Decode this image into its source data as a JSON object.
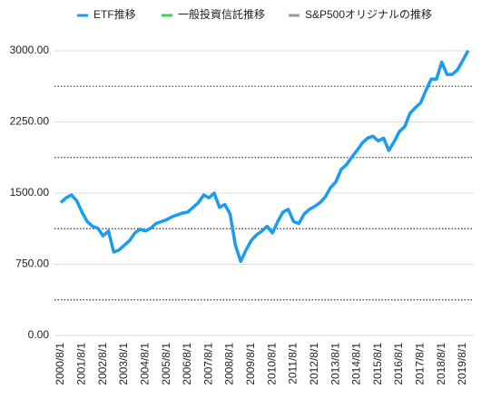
{
  "chart_data": {
    "type": "line",
    "categories": [
      "2000/8/1",
      null,
      null,
      null,
      "2001/8/1",
      null,
      null,
      null,
      "2002/8/1",
      null,
      null,
      null,
      "2003/8/1",
      null,
      null,
      null,
      "2004/8/1",
      null,
      null,
      null,
      "2005/8/1",
      null,
      null,
      null,
      "2006/8/1",
      null,
      null,
      null,
      "2007/8/1",
      null,
      null,
      null,
      "2008/8/1",
      null,
      null,
      null,
      "2009/8/1",
      null,
      null,
      null,
      "2010/8/1",
      null,
      null,
      null,
      "2011/8/1",
      null,
      null,
      null,
      "2012/8/1",
      null,
      null,
      null,
      "2013/8/1",
      null,
      null,
      null,
      "2014/8/1",
      null,
      null,
      null,
      "2015/8/1",
      null,
      null,
      null,
      "2016/8/1",
      null,
      null,
      null,
      "2017/8/1",
      null,
      null,
      null,
      "2018/8/1",
      null,
      null,
      null,
      "2019/8/1",
      null
    ],
    "series": [
      {
        "name": "ETF推移",
        "color": "#1a9cf0",
        "values": [
          1400,
          1450,
          1480,
          1420,
          1300,
          1200,
          1150,
          1130,
          1050,
          1100,
          880,
          900,
          950,
          1000,
          1080,
          1120,
          1100,
          1130,
          1180,
          1200,
          1220,
          1250,
          1270,
          1290,
          1300,
          1350,
          1400,
          1480,
          1450,
          1500,
          1350,
          1380,
          1280,
          950,
          780,
          900,
          1000,
          1060,
          1100,
          1150,
          1080,
          1200,
          1300,
          1330,
          1200,
          1180,
          1280,
          1330,
          1360,
          1400,
          1460,
          1560,
          1620,
          1750,
          1800,
          1880,
          1950,
          2030,
          2080,
          2100,
          2050,
          2080,
          1950,
          2040,
          2150,
          2200,
          2340,
          2400,
          2450,
          2580,
          2700,
          2700,
          2880,
          2750,
          2750,
          2800,
          2900,
          3000
        ]
      },
      {
        "name": "一般投資信託推移",
        "color": "#3ccf4e",
        "values": [
          null,
          null,
          null,
          null,
          null,
          null,
          null,
          null,
          null,
          null,
          null,
          null,
          null,
          null,
          null,
          null,
          null,
          null,
          null,
          null,
          null,
          null,
          null,
          null,
          null,
          null,
          null,
          null,
          null,
          null,
          null,
          null,
          null,
          null,
          null,
          null,
          null,
          null,
          null,
          null,
          null,
          null,
          null,
          null,
          null,
          null,
          null,
          null,
          null,
          null,
          null,
          null,
          null,
          null,
          null,
          null,
          null,
          null,
          null,
          null,
          null,
          null,
          null,
          null,
          null,
          null,
          null,
          null,
          null,
          null,
          null,
          null,
          null,
          null,
          null,
          null,
          null,
          null
        ]
      },
      {
        "name": "S&P500オリジナルの推移",
        "color": "#999999",
        "values": [
          null,
          null,
          null,
          null,
          null,
          null,
          null,
          null,
          null,
          null,
          null,
          null,
          null,
          null,
          null,
          null,
          null,
          null,
          null,
          null,
          null,
          null,
          null,
          null,
          null,
          null,
          null,
          null,
          null,
          null,
          null,
          null,
          null,
          null,
          null,
          null,
          null,
          null,
          null,
          null,
          null,
          null,
          null,
          null,
          null,
          null,
          null,
          null,
          null,
          null,
          null,
          null,
          null,
          null,
          null,
          null,
          null,
          null,
          null,
          null,
          null,
          null,
          null,
          null,
          null,
          null,
          null,
          null,
          null,
          null,
          null,
          null,
          null,
          null,
          null,
          null,
          null,
          null
        ]
      }
    ],
    "ylim": [
      0,
      3200
    ],
    "yticks": [
      {
        "value": 0,
        "label": "0.00"
      },
      {
        "value": 750,
        "label": "750.00"
      },
      {
        "value": 1500,
        "label": "1500.00"
      },
      {
        "value": 2250,
        "label": "2250.00"
      },
      {
        "value": 3000,
        "label": "3000.00"
      }
    ],
    "minor_yticks": [
      375,
      1125,
      1875,
      2625
    ],
    "grid": true
  }
}
